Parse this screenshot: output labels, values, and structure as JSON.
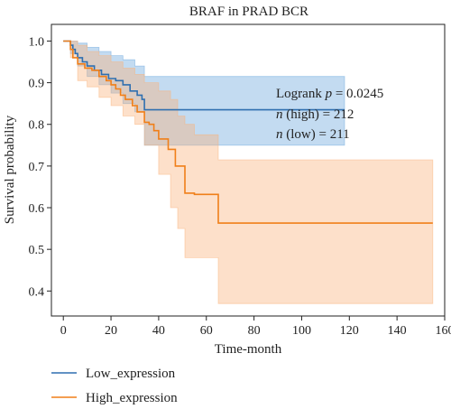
{
  "chart_data": {
    "type": "line",
    "title": "BRAF in PRAD BCR",
    "xlabel": "Time-month",
    "ylabel": "Survival probability",
    "xlim": [
      -5,
      160
    ],
    "ylim": [
      0.34,
      1.04
    ],
    "xticks": [
      0,
      20,
      40,
      60,
      80,
      100,
      120,
      140,
      160
    ],
    "yticks": [
      0.4,
      0.5,
      0.6,
      0.7,
      0.8,
      0.9,
      1.0
    ],
    "annotations": [
      {
        "prefix": "Logrank ",
        "italic": "p",
        "suffix": " = 0.0245"
      },
      {
        "prefix": "",
        "italic": "n",
        "suffix": " (high) = 212"
      },
      {
        "prefix": "",
        "italic": "n",
        "suffix": " (low) = 211"
      }
    ],
    "legend_position": "bottom-left",
    "series": [
      {
        "name": "Low_expression",
        "color": "#2f6fb0",
        "band_color": "#6aa6dc",
        "steps": [
          [
            0,
            1.0
          ],
          [
            3,
            0.99
          ],
          [
            4,
            0.98
          ],
          [
            5,
            0.97
          ],
          [
            6,
            0.96
          ],
          [
            8,
            0.95
          ],
          [
            10,
            0.94
          ],
          [
            13,
            0.93
          ],
          [
            16,
            0.92
          ],
          [
            19,
            0.91
          ],
          [
            22,
            0.905
          ],
          [
            25,
            0.895
          ],
          [
            28,
            0.88
          ],
          [
            31,
            0.87
          ],
          [
            33,
            0.86
          ],
          [
            34,
            0.835
          ],
          [
            118,
            0.835
          ]
        ],
        "upper": [
          [
            0,
            1.0
          ],
          [
            3,
            1.0
          ],
          [
            6,
            0.995
          ],
          [
            10,
            0.985
          ],
          [
            15,
            0.975
          ],
          [
            20,
            0.965
          ],
          [
            25,
            0.955
          ],
          [
            30,
            0.94
          ],
          [
            34,
            0.915
          ],
          [
            118,
            0.915
          ]
        ],
        "lower": [
          [
            0,
            1.0
          ],
          [
            3,
            0.97
          ],
          [
            6,
            0.94
          ],
          [
            10,
            0.915
          ],
          [
            15,
            0.895
          ],
          [
            20,
            0.875
          ],
          [
            25,
            0.85
          ],
          [
            30,
            0.83
          ],
          [
            34,
            0.75
          ],
          [
            118,
            0.75
          ]
        ]
      },
      {
        "name": "High_expression",
        "color": "#f07f19",
        "band_color": "#f9b27a",
        "steps": [
          [
            0,
            1.0
          ],
          [
            3,
            0.98
          ],
          [
            4,
            0.96
          ],
          [
            6,
            0.945
          ],
          [
            9,
            0.935
          ],
          [
            12,
            0.93
          ],
          [
            15,
            0.915
          ],
          [
            18,
            0.905
          ],
          [
            20,
            0.895
          ],
          [
            22,
            0.885
          ],
          [
            24,
            0.87
          ],
          [
            26,
            0.86
          ],
          [
            29,
            0.845
          ],
          [
            31,
            0.83
          ],
          [
            34,
            0.805
          ],
          [
            36,
            0.8
          ],
          [
            38,
            0.785
          ],
          [
            40,
            0.765
          ],
          [
            44,
            0.74
          ],
          [
            47,
            0.7
          ],
          [
            51,
            0.635
          ],
          [
            55,
            0.632
          ],
          [
            59,
            0.632
          ],
          [
            65,
            0.563
          ],
          [
            155,
            0.563
          ]
        ],
        "upper": [
          [
            0,
            1.0
          ],
          [
            3,
            1.0
          ],
          [
            6,
            0.99
          ],
          [
            10,
            0.975
          ],
          [
            15,
            0.965
          ],
          [
            20,
            0.95
          ],
          [
            25,
            0.935
          ],
          [
            30,
            0.92
          ],
          [
            34,
            0.9
          ],
          [
            40,
            0.88
          ],
          [
            45,
            0.86
          ],
          [
            48,
            0.82
          ],
          [
            51,
            0.8
          ],
          [
            55,
            0.775
          ],
          [
            65,
            0.715
          ],
          [
            155,
            0.715
          ]
        ],
        "lower": [
          [
            0,
            1.0
          ],
          [
            3,
            0.96
          ],
          [
            6,
            0.905
          ],
          [
            10,
            0.89
          ],
          [
            15,
            0.865
          ],
          [
            20,
            0.845
          ],
          [
            25,
            0.82
          ],
          [
            30,
            0.8
          ],
          [
            34,
            0.75
          ],
          [
            40,
            0.68
          ],
          [
            45,
            0.6
          ],
          [
            48,
            0.55
          ],
          [
            51,
            0.48
          ],
          [
            55,
            0.48
          ],
          [
            65,
            0.37
          ],
          [
            155,
            0.37
          ]
        ]
      }
    ]
  }
}
